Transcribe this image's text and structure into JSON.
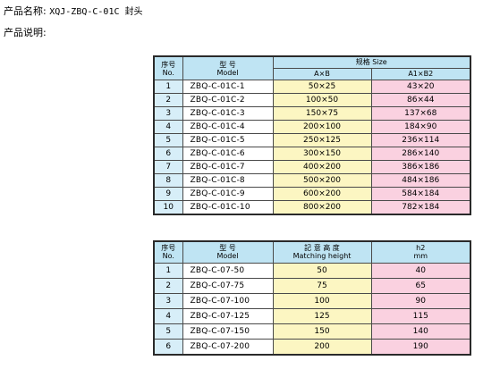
{
  "product": {
    "name_label": "产品名称:",
    "name_value": "XQJ-ZBQ-C-01C 封头",
    "desc_label": "产品说明:"
  },
  "table1": {
    "headers": {
      "idx_zh": "序号",
      "idx_en": "No.",
      "model_zh": "型 号",
      "model_en": "Model",
      "size": "规格 Size",
      "ab": "A×B",
      "a1b2": "A1×B2"
    },
    "rows": [
      {
        "idx": "1",
        "model": "ZBQ-C-01C-1",
        "ab": "50×25",
        "a1b2": "43×20"
      },
      {
        "idx": "2",
        "model": "ZBQ-C-01C-2",
        "ab": "100×50",
        "a1b2": "86×44"
      },
      {
        "idx": "3",
        "model": "ZBQ-C-01C-3",
        "ab": "150×75",
        "a1b2": "137×68"
      },
      {
        "idx": "4",
        "model": "ZBQ-C-01C-4",
        "ab": "200×100",
        "a1b2": "184×90"
      },
      {
        "idx": "5",
        "model": "ZBQ-C-01C-5",
        "ab": "250×125",
        "a1b2": "236×114"
      },
      {
        "idx": "6",
        "model": "ZBQ-C-01C-6",
        "ab": "300×150",
        "a1b2": "286×140"
      },
      {
        "idx": "7",
        "model": "ZBQ-C-01C-7",
        "ab": "400×200",
        "a1b2": "386×186"
      },
      {
        "idx": "8",
        "model": "ZBQ-C-01C-8",
        "ab": "500×200",
        "a1b2": "484×186"
      },
      {
        "idx": "9",
        "model": "ZBQ-C-01C-9",
        "ab": "600×200",
        "a1b2": "584×184"
      },
      {
        "idx": "10",
        "model": "ZBQ-C-01C-10",
        "ab": "800×200",
        "a1b2": "782×184"
      }
    ]
  },
  "table2": {
    "headers": {
      "idx_zh": "序号",
      "idx_en": "No.",
      "model_zh": "型 号",
      "model_en": "Model",
      "height_zh": "記 意 高 度",
      "height_en": "Matching height",
      "h2": "h2",
      "unit": "mm"
    },
    "rows": [
      {
        "idx": "1",
        "model": "ZBQ-C-07-50",
        "height": "50",
        "h2": "40"
      },
      {
        "idx": "2",
        "model": "ZBQ-C-07-75",
        "height": "75",
        "h2": "65"
      },
      {
        "idx": "3",
        "model": "ZBQ-C-07-100",
        "height": "100",
        "h2": "90"
      },
      {
        "idx": "4",
        "model": "ZBQ-C-07-125",
        "height": "125",
        "h2": "115"
      },
      {
        "idx": "5",
        "model": "ZBQ-C-07-150",
        "height": "150",
        "h2": "140"
      },
      {
        "idx": "6",
        "model": "ZBQ-C-07-200",
        "height": "200",
        "h2": "190"
      }
    ]
  }
}
